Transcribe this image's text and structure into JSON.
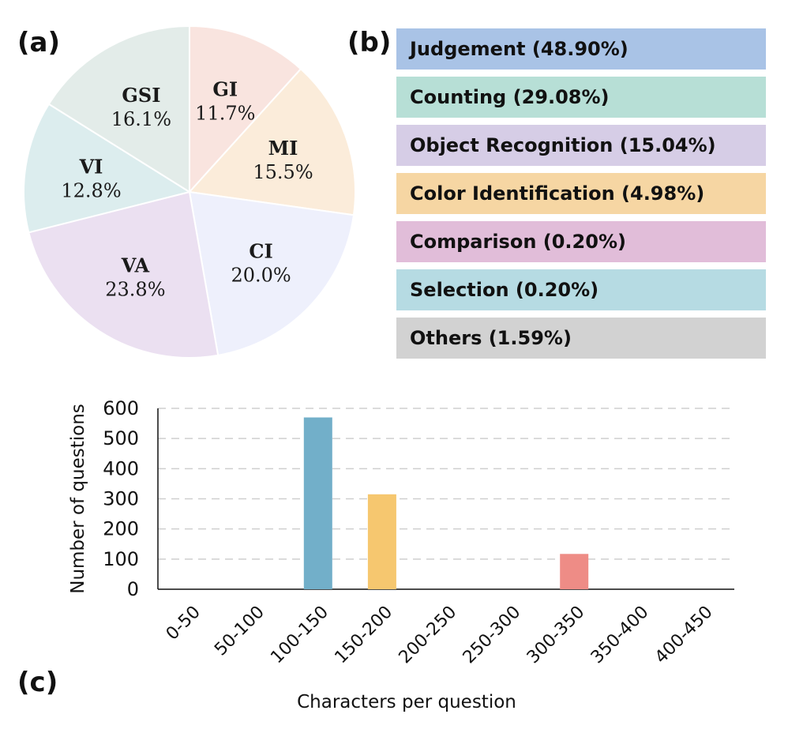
{
  "panel_labels": {
    "a": "(a)",
    "b": "(b)",
    "c": "(c)"
  },
  "chart_data": [
    {
      "type": "pie",
      "panel": "(a)",
      "slices": [
        {
          "abbr": "GI",
          "label": "11.7%",
          "value": 11.7,
          "color": "#f9e4df"
        },
        {
          "abbr": "MI",
          "label": "15.5%",
          "value": 15.5,
          "color": "#fbecda"
        },
        {
          "abbr": "CI",
          "label": "20.0%",
          "value": 20.0,
          "color": "#eef0fc"
        },
        {
          "abbr": "VA",
          "label": "23.8%",
          "value": 23.8,
          "color": "#ebe0f1"
        },
        {
          "abbr": "VI",
          "label": "12.8%",
          "value": 12.8,
          "color": "#dcedee"
        },
        {
          "abbr": "GSI",
          "label": "16.1%",
          "value": 16.1,
          "color": "#e3ece9"
        }
      ]
    },
    {
      "type": "table",
      "panel": "(b)",
      "items": [
        {
          "label": "Judgement (48.90%)",
          "value": 48.9,
          "color": "#a9c3e6"
        },
        {
          "label": "Counting (29.08%)",
          "value": 29.08,
          "color": "#b7dfd6"
        },
        {
          "label": "Object Recognition (15.04%)",
          "value": 15.04,
          "color": "#d6cde6"
        },
        {
          "label": "Color Identification (4.98%)",
          "value": 4.98,
          "color": "#f6d6a3"
        },
        {
          "label": "Comparison (0.20%)",
          "value": 0.2,
          "color": "#e1bdd9"
        },
        {
          "label": "Selection (0.20%)",
          "value": 0.2,
          "color": "#b6dbe3"
        },
        {
          "label": "Others (1.59%)",
          "value": 1.59,
          "color": "#d2d2d2"
        }
      ]
    },
    {
      "type": "bar",
      "panel": "(c)",
      "categories": [
        "0-50",
        "50-100",
        "100-150",
        "150-200",
        "200-250",
        "250-300",
        "300-350",
        "350-400",
        "400-450"
      ],
      "values": [
        0,
        0,
        570,
        315,
        0,
        0,
        117,
        0,
        0
      ],
      "colors": [
        "#72afc9",
        "#72afc9",
        "#72afc9",
        "#f6c76f",
        "#f6c76f",
        "#f6c76f",
        "#ee8c86",
        "#ee8c86",
        "#ee8c86"
      ],
      "yticks": [
        "0",
        "100",
        "200",
        "300",
        "400",
        "500",
        "600"
      ],
      "ylim": [
        0,
        600
      ],
      "xlabel": "Characters per question",
      "ylabel": "Number of questions",
      "grid": true
    }
  ]
}
